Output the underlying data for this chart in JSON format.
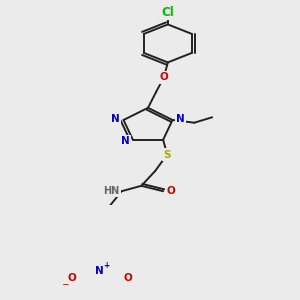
{
  "background_color": "#ebebeb",
  "bond_color": "#222222",
  "atoms": {
    "Cl": {
      "color": "#00bb00"
    },
    "N": {
      "color": "#0000cc"
    },
    "O": {
      "color": "#cc0000"
    },
    "S": {
      "color": "#aaaa00"
    },
    "H": {
      "color": "#666666"
    }
  },
  "lw": 1.4,
  "fs": 7.5
}
